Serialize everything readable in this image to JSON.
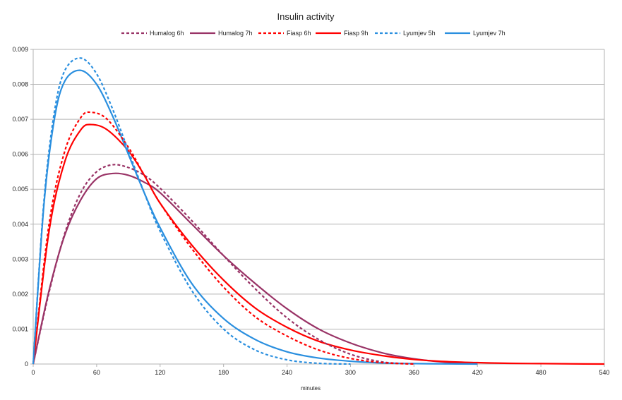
{
  "chart_data": {
    "type": "line",
    "title": "Insulin activity",
    "xlabel": "minutes",
    "ylabel": "",
    "xlim": [
      0,
      540
    ],
    "ylim": [
      0,
      0.009
    ],
    "x_ticks": [
      0,
      60,
      120,
      180,
      240,
      300,
      360,
      420,
      480,
      540
    ],
    "x_tick_labels": [
      "0",
      "60",
      "120",
      "180",
      "240",
      "300",
      "360",
      "420",
      "480",
      "540"
    ],
    "y_ticks": [
      0,
      0.001,
      0.002,
      0.003,
      0.004,
      0.005,
      0.006,
      0.007,
      0.008,
      0.009
    ],
    "y_tick_labels": [
      "0",
      "0.001",
      "0.002",
      "0.003",
      "0.004",
      "0.005",
      "0.006",
      "0.007",
      "0.008",
      "0.009"
    ],
    "grid": true,
    "legend_position": "top",
    "series": [
      {
        "name": "Humalog 6h",
        "color": "#993366",
        "dashed": true,
        "x": [
          0,
          15,
          30,
          45,
          60,
          75,
          90,
          105,
          120,
          150,
          180,
          210,
          240,
          270,
          300,
          330,
          360
        ],
        "y": [
          0,
          0.00205,
          0.00375,
          0.0049,
          0.0055,
          0.0057,
          0.00562,
          0.0054,
          0.00503,
          0.0041,
          0.0031,
          0.00215,
          0.00132,
          0.0007,
          0.00028,
          6e-05,
          0
        ]
      },
      {
        "name": "Humalog 7h",
        "color": "#993366",
        "dashed": false,
        "x": [
          0,
          15,
          30,
          45,
          60,
          75,
          90,
          105,
          120,
          150,
          180,
          210,
          240,
          270,
          300,
          330,
          360,
          390,
          420
        ],
        "y": [
          0,
          0.0021,
          0.0037,
          0.0047,
          0.0053,
          0.00545,
          0.0054,
          0.0052,
          0.0049,
          0.004,
          0.0031,
          0.0023,
          0.00158,
          0.001,
          0.0006,
          0.00032,
          0.00015,
          5e-05,
          0
        ]
      },
      {
        "name": "Fiasp 6h",
        "color": "#ff0000",
        "dashed": true,
        "x": [
          0,
          15,
          30,
          45,
          55,
          70,
          90,
          105,
          120,
          150,
          180,
          210,
          240,
          270,
          300,
          330,
          360
        ],
        "y": [
          0,
          0.004,
          0.0061,
          0.00705,
          0.0072,
          0.007,
          0.0062,
          0.0054,
          0.0046,
          0.0033,
          0.0022,
          0.00135,
          0.0008,
          0.0004,
          0.00016,
          4e-05,
          0
        ]
      },
      {
        "name": "Fiasp 9h",
        "color": "#ff0000",
        "dashed": false,
        "x": [
          0,
          15,
          30,
          45,
          55,
          70,
          90,
          105,
          120,
          150,
          180,
          210,
          240,
          270,
          300,
          330,
          360,
          390,
          420,
          450,
          480,
          510,
          540
        ],
        "y": [
          0,
          0.0038,
          0.0058,
          0.0067,
          0.00685,
          0.0067,
          0.0061,
          0.0054,
          0.0046,
          0.0034,
          0.0024,
          0.0016,
          0.00105,
          0.00065,
          0.0004,
          0.00024,
          0.00013,
          7e-05,
          4e-05,
          2e-05,
          1.2e-05,
          5e-06,
          0
        ]
      },
      {
        "name": "Lyumjev 5h",
        "color": "#2a8fdf",
        "dashed": true,
        "x": [
          0,
          10,
          20,
          30,
          45,
          60,
          75,
          90,
          105,
          120,
          150,
          180,
          210,
          240,
          270,
          300
        ],
        "y": [
          0,
          0.0046,
          0.0072,
          0.0084,
          0.00875,
          0.0083,
          0.0073,
          0.0061,
          0.0049,
          0.0038,
          0.0021,
          0.001,
          0.0004,
          0.00012,
          2e-05,
          0
        ]
      },
      {
        "name": "Lyumjev 7h",
        "color": "#2a8fdf",
        "dashed": false,
        "x": [
          0,
          10,
          20,
          30,
          45,
          60,
          75,
          90,
          105,
          120,
          150,
          180,
          210,
          240,
          270,
          300,
          330,
          360,
          390,
          420
        ],
        "y": [
          0,
          0.0045,
          0.007,
          0.0081,
          0.0084,
          0.008,
          0.0071,
          0.006,
          0.0049,
          0.0039,
          0.0023,
          0.0013,
          0.0007,
          0.00035,
          0.00017,
          8e-05,
          3e-05,
          1.2e-05,
          4e-06,
          0
        ]
      }
    ]
  }
}
